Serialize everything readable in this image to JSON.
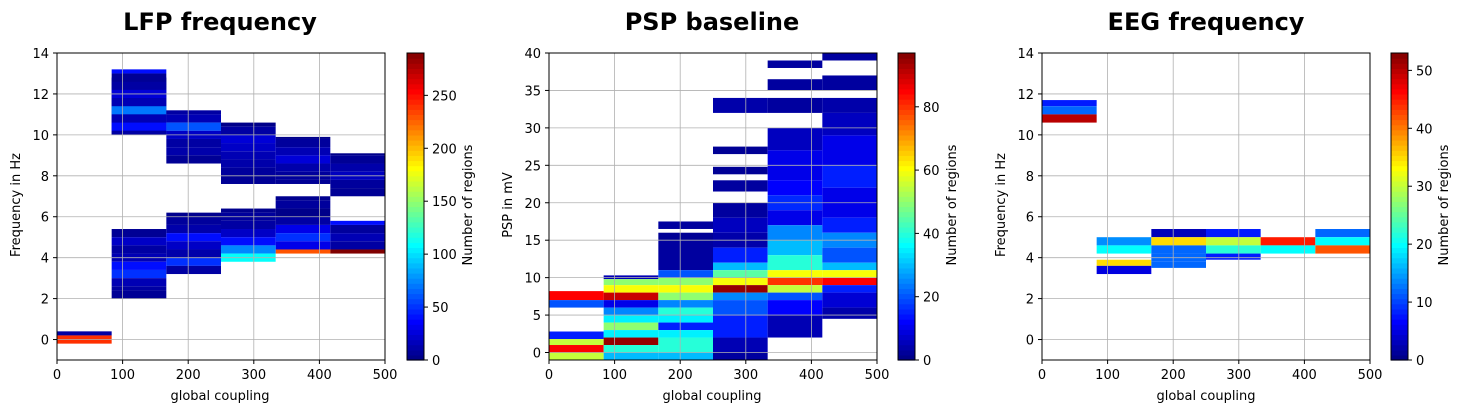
{
  "colorbar_label": "Number of regions",
  "chart_data": [
    {
      "type": "heatmap",
      "title": "LFP frequency",
      "xlabel": "global coupling",
      "ylabel": "Frequency in Hz",
      "xlim": [
        0,
        500
      ],
      "ylim": [
        -1,
        14
      ],
      "xticks": [
        0,
        100,
        200,
        300,
        400,
        500
      ],
      "yticks": [
        0,
        2,
        4,
        6,
        8,
        10,
        12,
        14
      ],
      "bin_width_x": 83.33,
      "bin_height_y": 0.4,
      "grid": true,
      "colormap": "jet",
      "colorbar": {
        "min": 0,
        "max": 290,
        "ticks": [
          0,
          50,
          100,
          150,
          200,
          250
        ]
      },
      "cells": [
        [
          0,
          0.2,
          0.4,
          10
        ],
        [
          0,
          -0.2,
          0.2,
          240
        ],
        [
          83.33,
          12.4,
          12.8,
          1
        ],
        [
          83.33,
          12.0,
          12.4,
          8
        ],
        [
          83.33,
          11.6,
          12.0,
          6
        ],
        [
          83.33,
          11.2,
          11.6,
          12
        ],
        [
          83.33,
          10.8,
          11.2,
          6
        ],
        [
          83.33,
          10.4,
          10.8,
          8
        ],
        [
          83.33,
          10.0,
          10.4,
          10
        ],
        [
          83.33,
          13.0,
          13.2,
          40
        ],
        [
          83.33,
          12.6,
          13.0,
          6
        ],
        [
          83.33,
          12.2,
          12.6,
          10
        ],
        [
          83.33,
          11.8,
          12.2,
          25
        ],
        [
          83.33,
          11.4,
          11.8,
          15
        ],
        [
          83.33,
          11.0,
          11.4,
          70
        ],
        [
          83.33,
          10.6,
          11.0,
          15
        ],
        [
          83.33,
          10.2,
          10.6,
          40
        ],
        [
          83.33,
          10.0,
          10.2,
          10
        ],
        [
          166.67,
          11.0,
          11.2,
          10
        ],
        [
          166.67,
          10.6,
          11.0,
          15
        ],
        [
          166.67,
          10.2,
          10.6,
          60
        ],
        [
          166.67,
          9.8,
          10.2,
          20
        ],
        [
          166.67,
          9.4,
          9.8,
          10
        ],
        [
          166.67,
          9.0,
          9.4,
          12
        ],
        [
          166.67,
          8.6,
          9.0,
          6
        ],
        [
          250.0,
          10.4,
          10.6,
          3
        ],
        [
          250.0,
          10.0,
          10.4,
          10
        ],
        [
          250.0,
          9.6,
          10.0,
          25
        ],
        [
          250.0,
          9.2,
          9.6,
          20
        ],
        [
          250.0,
          8.8,
          9.2,
          15
        ],
        [
          250.0,
          8.4,
          8.8,
          12
        ],
        [
          250.0,
          8.0,
          8.4,
          8
        ],
        [
          250.0,
          7.6,
          8.0,
          6
        ],
        [
          333.33,
          9.8,
          9.9,
          3
        ],
        [
          333.33,
          9.4,
          9.8,
          8
        ],
        [
          333.33,
          9.0,
          9.4,
          15
        ],
        [
          333.33,
          8.6,
          9.0,
          25
        ],
        [
          333.33,
          8.2,
          8.6,
          12
        ],
        [
          333.33,
          7.8,
          8.2,
          8
        ],
        [
          333.33,
          7.6,
          7.8,
          6
        ],
        [
          416.67,
          9.0,
          9.1,
          3
        ],
        [
          416.67,
          8.6,
          9.0,
          6
        ],
        [
          416.67,
          8.2,
          8.6,
          12
        ],
        [
          416.67,
          7.8,
          8.2,
          18
        ],
        [
          416.67,
          7.4,
          7.8,
          8
        ],
        [
          416.67,
          7.0,
          7.4,
          6
        ],
        [
          333.33,
          6.8,
          7.0,
          4
        ],
        [
          333.33,
          6.4,
          6.8,
          8
        ],
        [
          333.33,
          6.0,
          6.4,
          3
        ],
        [
          333.33,
          5.6,
          6.0,
          10
        ],
        [
          333.33,
          5.2,
          5.6,
          30
        ],
        [
          333.33,
          4.8,
          5.2,
          50
        ],
        [
          333.33,
          4.4,
          4.8,
          30
        ],
        [
          333.33,
          4.2,
          4.4,
          230
        ],
        [
          416.67,
          5.6,
          5.8,
          40
        ],
        [
          416.67,
          5.2,
          5.6,
          8
        ],
        [
          416.67,
          4.8,
          5.2,
          15
        ],
        [
          416.67,
          4.4,
          4.8,
          10
        ],
        [
          416.67,
          4.2,
          4.4,
          290
        ],
        [
          83.33,
          5.0,
          5.4,
          6
        ],
        [
          83.33,
          4.6,
          5.0,
          20
        ],
        [
          83.33,
          4.2,
          4.6,
          10
        ],
        [
          83.33,
          3.8,
          4.2,
          15
        ],
        [
          83.33,
          3.4,
          3.8,
          40
        ],
        [
          83.33,
          3.0,
          3.4,
          50
        ],
        [
          83.33,
          2.6,
          3.0,
          15
        ],
        [
          83.33,
          2.4,
          2.6,
          10
        ],
        [
          83.33,
          2.0,
          2.4,
          6
        ],
        [
          166.67,
          6.0,
          6.2,
          4
        ],
        [
          166.67,
          5.6,
          6.0,
          8
        ],
        [
          166.67,
          5.2,
          5.6,
          12
        ],
        [
          166.67,
          4.8,
          5.2,
          40
        ],
        [
          166.67,
          4.4,
          4.8,
          20
        ],
        [
          166.67,
          4.0,
          4.4,
          12
        ],
        [
          166.67,
          3.6,
          4.0,
          50
        ],
        [
          166.67,
          3.2,
          3.6,
          10
        ],
        [
          250.0,
          6.2,
          6.4,
          4
        ],
        [
          250.0,
          5.8,
          6.2,
          8
        ],
        [
          250.0,
          5.4,
          5.8,
          10
        ],
        [
          250.0,
          5.0,
          5.4,
          20
        ],
        [
          250.0,
          4.6,
          5.0,
          40
        ],
        [
          250.0,
          4.2,
          4.6,
          75
        ],
        [
          250.0,
          3.8,
          4.2,
          110
        ]
      ]
    },
    {
      "type": "heatmap",
      "title": "PSP baseline",
      "xlabel": "global coupling",
      "ylabel": "PSP in mV",
      "xlim": [
        0,
        500
      ],
      "ylim": [
        -1,
        40
      ],
      "xticks": [
        0,
        100,
        200,
        300,
        400,
        500
      ],
      "yticks": [
        0,
        5,
        10,
        15,
        20,
        25,
        30,
        35,
        40
      ],
      "bin_width_x": 83.33,
      "grid": true,
      "colormap": "jet",
      "colorbar": {
        "min": 0,
        "max": 97,
        "ticks": [
          0,
          20,
          40,
          60,
          80
        ]
      },
      "cells": [
        [
          0,
          7.0,
          8.2,
          85
        ],
        [
          0,
          6.0,
          7.0,
          20
        ],
        [
          0,
          2.8,
          1.8,
          15
        ],
        [
          0,
          1.8,
          2.8,
          15
        ],
        [
          0,
          1.0,
          1.8,
          55
        ],
        [
          0,
          0.0,
          1.0,
          85
        ],
        [
          0,
          -1.0,
          0.0,
          55
        ],
        [
          83.33,
          9.8,
          10.3,
          5
        ],
        [
          83.33,
          9.0,
          9.8,
          50
        ],
        [
          83.33,
          8.0,
          9.0,
          60
        ],
        [
          83.33,
          7.0,
          8.0,
          90
        ],
        [
          83.33,
          6.0,
          7.0,
          10
        ],
        [
          83.33,
          5.0,
          6.0,
          25
        ],
        [
          83.33,
          4.0,
          5.0,
          35
        ],
        [
          83.33,
          3.0,
          4.0,
          50
        ],
        [
          83.33,
          2.0,
          3.0,
          35
        ],
        [
          83.33,
          1.0,
          2.0,
          95
        ],
        [
          83.33,
          0.0,
          1.0,
          40
        ],
        [
          83.33,
          -1.0,
          0.0,
          30
        ],
        [
          166.67,
          16.5,
          17.5,
          3
        ],
        [
          166.67,
          15.0,
          16.0,
          2
        ],
        [
          166.67,
          11.0,
          15.0,
          3
        ],
        [
          166.67,
          10.0,
          11.0,
          20
        ],
        [
          166.67,
          9.0,
          10.0,
          50
        ],
        [
          166.67,
          8.0,
          9.0,
          60
        ],
        [
          166.67,
          7.0,
          8.0,
          50
        ],
        [
          166.67,
          6.0,
          7.0,
          25
        ],
        [
          166.67,
          5.0,
          6.0,
          40
        ],
        [
          166.67,
          4.0,
          5.0,
          35
        ],
        [
          166.67,
          3.0,
          4.0,
          15
        ],
        [
          166.67,
          2.0,
          3.0,
          35
        ],
        [
          166.67,
          0.0,
          2.0,
          40
        ],
        [
          166.67,
          -1.0,
          0.0,
          30
        ],
        [
          250.0,
          32.0,
          34.0,
          4
        ],
        [
          250.0,
          26.5,
          27.5,
          2
        ],
        [
          250.0,
          23.8,
          24.8,
          2
        ],
        [
          250.0,
          21.5,
          23.0,
          3
        ],
        [
          250.0,
          18.0,
          20.0,
          3
        ],
        [
          250.0,
          16.0,
          18.0,
          6
        ],
        [
          250.0,
          14.0,
          16.0,
          4
        ],
        [
          250.0,
          12.0,
          14.0,
          15
        ],
        [
          250.0,
          11.0,
          12.0,
          30
        ],
        [
          250.0,
          10.0,
          11.0,
          45
        ],
        [
          250.0,
          9.0,
          10.0,
          60
        ],
        [
          250.0,
          8.0,
          9.0,
          95
        ],
        [
          250.0,
          7.0,
          8.0,
          25
        ],
        [
          250.0,
          5.0,
          7.0,
          20
        ],
        [
          250.0,
          2.0,
          5.0,
          15
        ],
        [
          250.0,
          0.0,
          2.0,
          5
        ],
        [
          250.0,
          -1.0,
          0.0,
          3
        ],
        [
          333.33,
          38.0,
          39.0,
          3
        ],
        [
          333.33,
          35.0,
          36.5,
          3
        ],
        [
          333.33,
          32.0,
          34.0,
          3
        ],
        [
          333.33,
          27.0,
          30.0,
          6
        ],
        [
          333.33,
          25.0,
          27.0,
          10
        ],
        [
          333.33,
          23.0,
          25.0,
          10
        ],
        [
          333.33,
          21.0,
          23.0,
          12
        ],
        [
          333.33,
          19.0,
          21.0,
          16
        ],
        [
          333.33,
          17.0,
          19.0,
          10
        ],
        [
          333.33,
          15.0,
          17.0,
          25
        ],
        [
          333.33,
          13.0,
          15.0,
          30
        ],
        [
          333.33,
          11.0,
          13.0,
          40
        ],
        [
          333.33,
          10.0,
          11.0,
          60
        ],
        [
          333.33,
          9.0,
          10.0,
          80
        ],
        [
          333.33,
          8.0,
          9.0,
          55
        ],
        [
          333.33,
          7.0,
          8.0,
          20
        ],
        [
          333.33,
          5.0,
          7.0,
          12
        ],
        [
          333.33,
          2.0,
          5.0,
          5
        ],
        [
          416.67,
          39.0,
          40.0,
          3
        ],
        [
          416.67,
          35.0,
          37.0,
          3
        ],
        [
          416.67,
          32.0,
          34.0,
          4
        ],
        [
          416.67,
          29.0,
          32.0,
          6
        ],
        [
          416.67,
          25.0,
          29.0,
          10
        ],
        [
          416.67,
          22.0,
          25.0,
          15
        ],
        [
          416.67,
          18.0,
          22.0,
          10
        ],
        [
          416.67,
          16.0,
          18.0,
          15
        ],
        [
          416.67,
          14.0,
          16.0,
          25
        ],
        [
          416.67,
          12.0,
          14.0,
          20
        ],
        [
          416.67,
          11.0,
          12.0,
          30
        ],
        [
          416.67,
          10.0,
          11.0,
          60
        ],
        [
          416.67,
          9.0,
          10.0,
          85
        ],
        [
          416.67,
          8.0,
          9.0,
          15
        ],
        [
          416.67,
          6.0,
          8.0,
          8
        ],
        [
          416.67,
          4.5,
          6.0,
          4
        ]
      ]
    },
    {
      "type": "heatmap",
      "title": "EEG frequency",
      "xlabel": "global coupling",
      "ylabel": "Frequency in Hz",
      "xlim": [
        0,
        500
      ],
      "ylim": [
        -1,
        14
      ],
      "xticks": [
        0,
        100,
        200,
        300,
        400,
        500
      ],
      "yticks": [
        0,
        2,
        4,
        6,
        8,
        10,
        12,
        14
      ],
      "bin_width_x": 83.33,
      "grid": true,
      "colormap": "jet",
      "colorbar": {
        "min": 0,
        "max": 53,
        "ticks": [
          0,
          10,
          20,
          30,
          40,
          50
        ]
      },
      "cells": [
        [
          0,
          11.4,
          11.7,
          8
        ],
        [
          0,
          11.0,
          11.4,
          12
        ],
        [
          0,
          10.6,
          11.0,
          50
        ],
        [
          83.33,
          4.6,
          5.0,
          14
        ],
        [
          83.33,
          4.2,
          4.6,
          20
        ],
        [
          83.33,
          3.6,
          3.9,
          35
        ],
        [
          83.33,
          3.2,
          3.6,
          5
        ],
        [
          166.67,
          5.0,
          5.4,
          3
        ],
        [
          166.67,
          4.6,
          5.0,
          35
        ],
        [
          166.67,
          4.2,
          4.6,
          12
        ],
        [
          166.67,
          3.8,
          4.2,
          12
        ],
        [
          166.67,
          3.5,
          3.8,
          12
        ],
        [
          250.0,
          5.0,
          5.4,
          8
        ],
        [
          250.0,
          4.6,
          5.0,
          30
        ],
        [
          250.0,
          4.2,
          4.6,
          22
        ],
        [
          250.0,
          3.9,
          4.2,
          8
        ],
        [
          333.33,
          4.6,
          5.0,
          45
        ],
        [
          333.33,
          4.2,
          4.6,
          20
        ],
        [
          416.67,
          5.0,
          5.4,
          12
        ],
        [
          416.67,
          4.6,
          5.0,
          20
        ],
        [
          416.67,
          4.2,
          4.6,
          42
        ]
      ]
    }
  ]
}
